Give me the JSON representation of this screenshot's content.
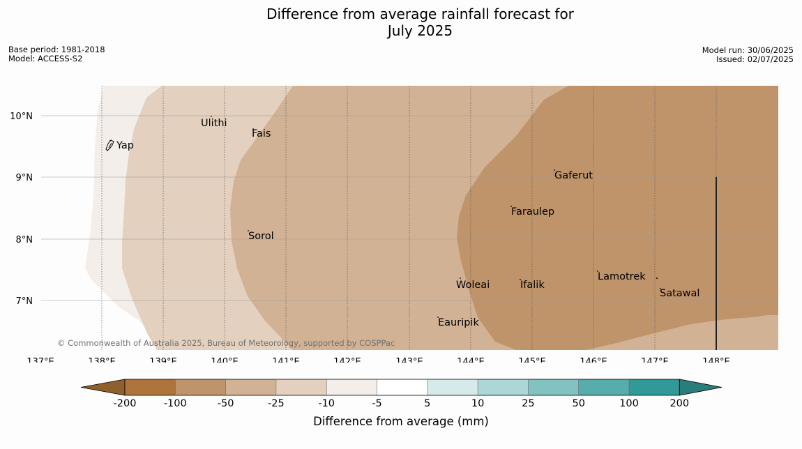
{
  "title_line1": "Difference from average rainfall forecast for",
  "title_line2": "July 2025",
  "meta_left": {
    "base_period": "Base period: 1981-2018",
    "model": "Model: ACCESS-S2"
  },
  "meta_right": {
    "model_run": "Model run: 30/06/2025",
    "issued": "Issued: 02/07/2025"
  },
  "copyright": "© Commonwealth of Australia 2025, Bureau of Meteorology, supported by COSPPac",
  "map": {
    "lon_ticks": [
      "137°E",
      "138°E",
      "139°E",
      "140°E",
      "141°E",
      "142°E",
      "143°E",
      "144°E",
      "145°E",
      "146°E",
      "147°E",
      "148°E"
    ],
    "lat_ticks": [
      "10°N",
      "9°N",
      "8°N",
      "7°N"
    ],
    "places": [
      {
        "name": "Ulithi"
      },
      {
        "name": "Fais"
      },
      {
        "name": "Yap"
      },
      {
        "name": "Gaferut"
      },
      {
        "name": "Faraulep"
      },
      {
        "name": "Sorol"
      },
      {
        "name": "Woleai"
      },
      {
        "name": "Ifalik"
      },
      {
        "name": "Lamotrek"
      },
      {
        "name": "Satawal"
      },
      {
        "name": "Eauripik"
      }
    ]
  },
  "colorbar": {
    "label": "Difference from average (mm)",
    "ticks": [
      "-200",
      "-100",
      "-50",
      "-25",
      "-10",
      "-5",
      "5",
      "10",
      "25",
      "50",
      "100",
      "200"
    ],
    "colors": {
      "under": "#8f5f2c",
      "bins": [
        "#ae743c",
        "#c0946a",
        "#d2b294",
        "#e3d0be",
        "#f3eee9",
        "#ffffff",
        "#d6ebe9",
        "#acd6d7",
        "#82c2c1",
        "#57acac",
        "#319998"
      ],
      "over": "#2a7d7b"
    }
  }
}
